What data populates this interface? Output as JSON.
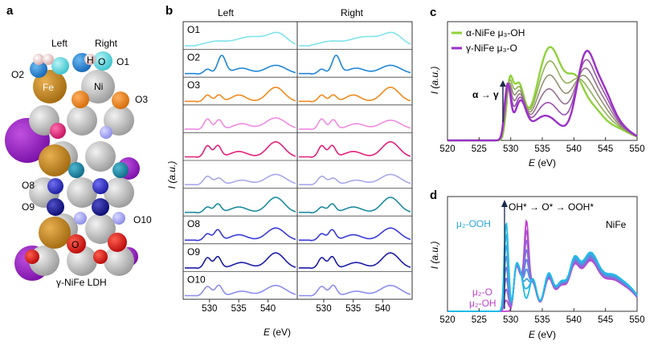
{
  "panel_a": {
    "letter": "a",
    "caption": "γ-NiFe LDH",
    "labels": [
      "Left",
      "Right",
      "O",
      "H",
      "O1",
      "O2",
      "Fe",
      "Ni",
      "O3",
      "O8",
      "O9",
      "O10",
      "O"
    ]
  },
  "panel_b": {
    "letter": "b",
    "col_left": "Left",
    "col_right": "Right",
    "ylabel": "I (a.u.)",
    "xlabel_var": "E",
    "xlabel_unit": " (eV)",
    "x_ticks": [
      "530",
      "535",
      "540"
    ],
    "rows": [
      {
        "label": "O1",
        "color": "#7ee4ea"
      },
      {
        "label": "O2",
        "color": "#1f86d8"
      },
      {
        "label": "O3",
        "color": "#f08a1c"
      },
      {
        "label": "",
        "color": "#f08be0"
      },
      {
        "label": "",
        "color": "#e3207a"
      },
      {
        "label": "",
        "color": "#a8a8ea"
      },
      {
        "label": "",
        "color": "#1b8a9e"
      },
      {
        "label": "O8",
        "color": "#3a3ad8"
      },
      {
        "label": "O9",
        "color": "#1c1ca8"
      },
      {
        "label": "O10",
        "color": "#8c8cf0"
      }
    ]
  },
  "panel_c": {
    "letter": "c",
    "legend": [
      {
        "label": "α-NiFe μ₃-OH",
        "color": "#8fd23a"
      },
      {
        "label": "γ-NiFe μ₃-O",
        "color": "#9b30c8"
      }
    ],
    "arrow_label": "α → γ",
    "ylabel": "I (a.u.)",
    "xlabel_var": "E",
    "xlabel_unit": " (eV)",
    "x_ticks": [
      "520",
      "525",
      "530",
      "535",
      "540",
      "545",
      "550"
    ]
  },
  "panel_d": {
    "letter": "d",
    "arrow_label": "OH* → O* → OOH*",
    "material": "NiFe",
    "label_top": "μ₂-OOH",
    "label_mid": "μ₂-O",
    "label_bot": "μ₂-OH",
    "ylabel": "I (a.u.)",
    "xlabel_var": "E",
    "xlabel_unit": " (eV)",
    "x_ticks": [
      "520",
      "525",
      "530",
      "535",
      "540",
      "545",
      "550"
    ]
  }
}
